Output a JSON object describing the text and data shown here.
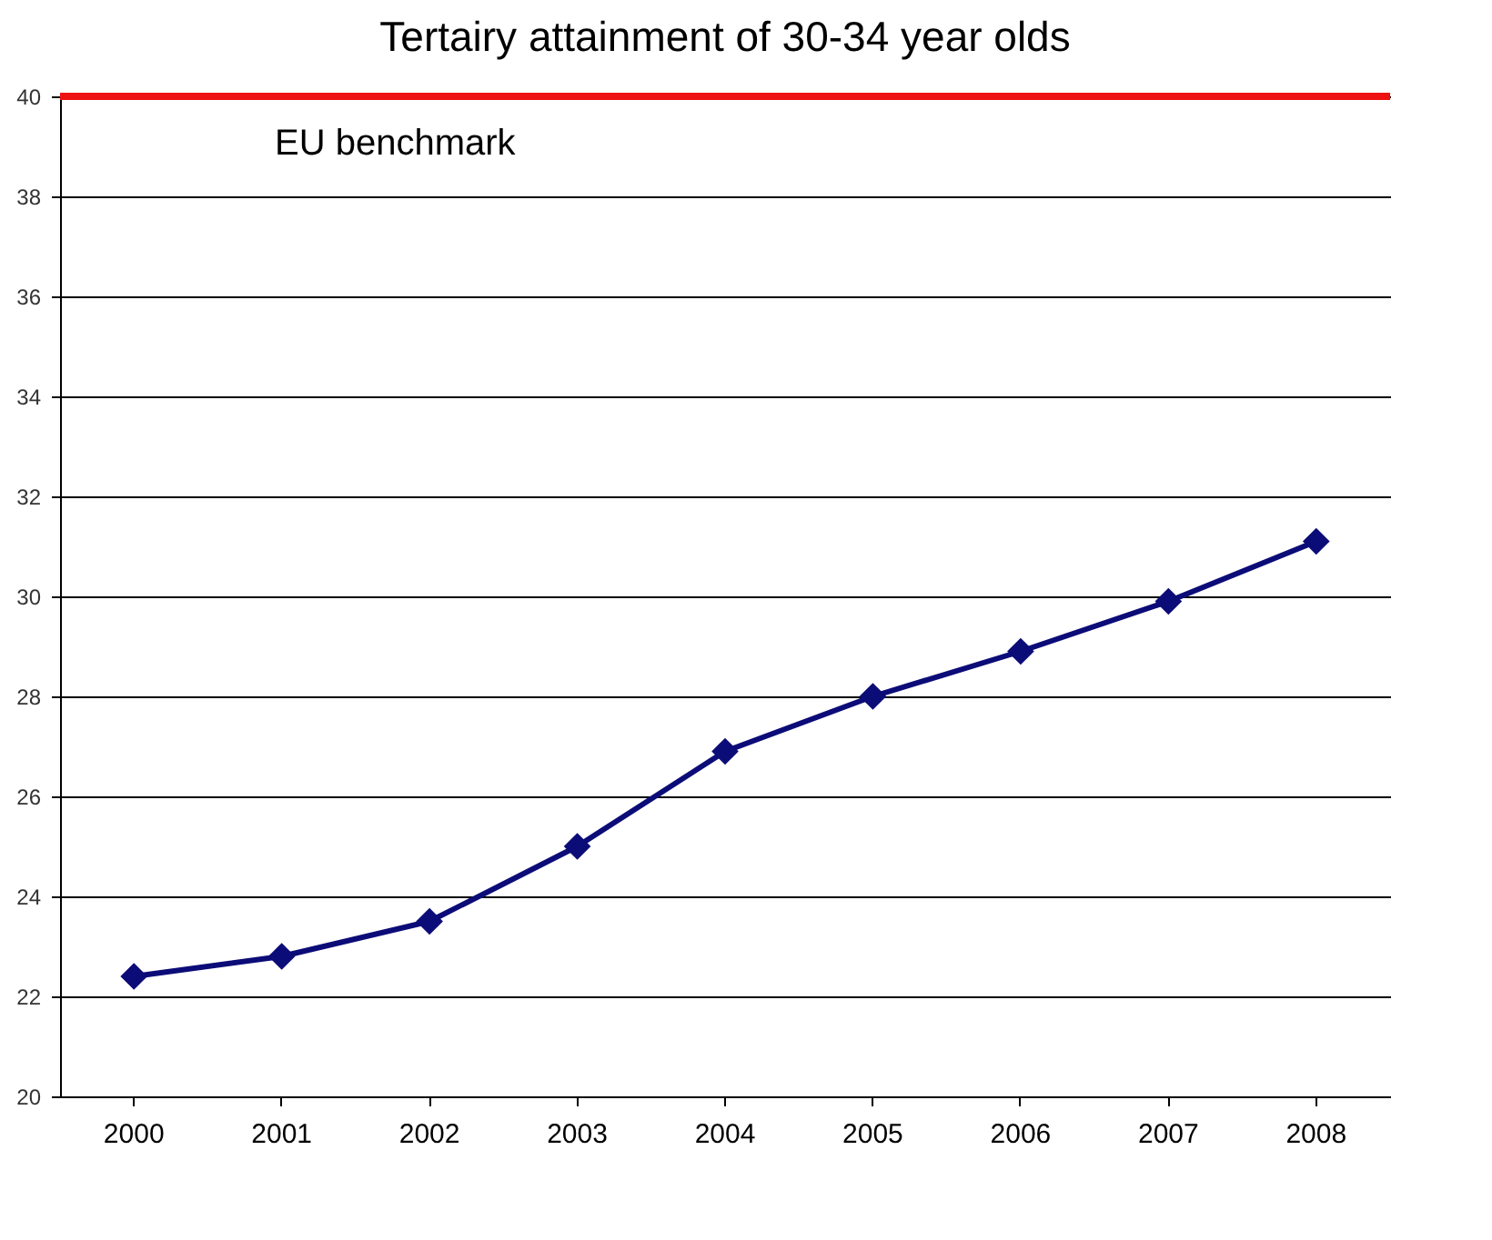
{
  "chart_data": {
    "type": "line",
    "title": "Tertairy attainment of 30-34 year olds",
    "categories": [
      "2000",
      "2001",
      "2002",
      "2003",
      "2004",
      "2005",
      "2006",
      "2007",
      "2008"
    ],
    "series": [
      {
        "color": "#0c0c78",
        "values": [
          22.4,
          22.8,
          23.5,
          25.0,
          26.9,
          28.0,
          28.9,
          29.9,
          31.1
        ]
      }
    ],
    "ylim": [
      20,
      40
    ],
    "yticks": [
      20,
      22,
      24,
      26,
      28,
      30,
      32,
      34,
      36,
      38,
      40
    ],
    "ref_lines": [
      {
        "axis": "y",
        "value": 40,
        "label": "EU benchmark",
        "color": "#ee1111"
      }
    ],
    "grid": "y",
    "marker": "diamond"
  }
}
